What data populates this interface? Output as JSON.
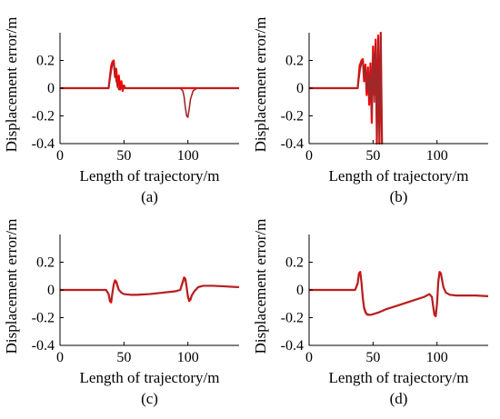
{
  "chart_data": [
    {
      "type": "line",
      "panel_label": "(a)",
      "xlabel": "Length of trajectory/m",
      "ylabel": "Displacement error/m",
      "xlim": [
        0,
        140
      ],
      "ylim": [
        -0.4,
        0.4
      ],
      "xticks": [
        0,
        50,
        100
      ],
      "yticks": [
        0.2,
        0,
        -0.2,
        -0.4
      ],
      "x_tick_labels": [
        "0",
        "50",
        "100"
      ],
      "y_tick_labels": [
        "0.2",
        "0",
        "-0.2",
        "-0.4"
      ],
      "grid": false,
      "series": [
        {
          "color": "#ff0000",
          "x": [
            0,
            38,
            40,
            41,
            42,
            43,
            44,
            45,
            46,
            47,
            48,
            49,
            50,
            51,
            140
          ],
          "y": [
            0,
            0,
            0.16,
            0.19,
            0.2,
            0.08,
            0.14,
            0.01,
            0.09,
            -0.01,
            0.05,
            -0.02,
            0.02,
            0,
            0
          ]
        },
        {
          "color": "#a0282a",
          "x": [
            0,
            38,
            40,
            41,
            42,
            43,
            44,
            45,
            46,
            47,
            48,
            50,
            52,
            94,
            96,
            97,
            98,
            99,
            100,
            101,
            102,
            104,
            107,
            140
          ],
          "y": [
            0,
            0,
            0.12,
            0.17,
            0.18,
            0.12,
            0.05,
            0.02,
            -0.01,
            0,
            0.01,
            0,
            0,
            0,
            -0.02,
            -0.06,
            -0.14,
            -0.2,
            -0.21,
            -0.15,
            -0.08,
            -0.02,
            0,
            0
          ]
        }
      ]
    },
    {
      "type": "line",
      "panel_label": "(b)",
      "xlabel": "Length of trajectory/m",
      "ylabel": "Displacement error/m",
      "xlim": [
        0,
        140
      ],
      "ylim": [
        -0.4,
        0.4
      ],
      "xticks": [
        0,
        50,
        100
      ],
      "yticks": [
        0.2,
        0,
        -0.2,
        -0.4
      ],
      "x_tick_labels": [
        "0",
        "50",
        "100"
      ],
      "y_tick_labels": [
        "0.2",
        "0",
        "-0.2",
        "-0.4"
      ],
      "grid": false,
      "series": [
        {
          "color": "#ff0000",
          "x": [
            0,
            38,
            39.5,
            41,
            42,
            43,
            44,
            45,
            46,
            47,
            48,
            49,
            50,
            51,
            52,
            53,
            54,
            55,
            56,
            57,
            57.5
          ],
          "y": [
            0,
            0,
            0.16,
            0.2,
            0.21,
            0.05,
            0.17,
            -0.05,
            0.15,
            -0.12,
            0.18,
            -0.25,
            0.3,
            -0.05,
            0.35,
            -0.4,
            0.38,
            -0.4,
            0.4,
            -0.4,
            -0.4
          ]
        },
        {
          "color": "#a0282a",
          "x": [
            0,
            38,
            40,
            41,
            42,
            43,
            44,
            45,
            46,
            47,
            48,
            49,
            50,
            51,
            52,
            53,
            54,
            55,
            56,
            57
          ],
          "y": [
            0,
            0,
            0.14,
            0.18,
            0.19,
            0.08,
            0.15,
            -0.02,
            0.12,
            -0.08,
            0.14,
            -0.2,
            0.26,
            -0.1,
            0.32,
            -0.36,
            0.36,
            -0.4,
            0.4,
            -0.4
          ]
        }
      ]
    },
    {
      "type": "line",
      "panel_label": "(c)",
      "xlabel": "Length of trajectory/m",
      "ylabel": "Displacement error/m",
      "xlim": [
        0,
        140
      ],
      "ylim": [
        -0.4,
        0.4
      ],
      "xticks": [
        0,
        50,
        100
      ],
      "yticks": [
        0.2,
        0,
        -0.2,
        -0.4
      ],
      "x_tick_labels": [
        "0",
        "50",
        "100"
      ],
      "y_tick_labels": [
        "0.2",
        "0",
        "-0.2",
        "-0.4"
      ],
      "grid": false,
      "series": [
        {
          "color": "#ff0000",
          "x": [
            0,
            36,
            38,
            39,
            40,
            41,
            42,
            43,
            44,
            45,
            46,
            48,
            50,
            55,
            60,
            70,
            80,
            90,
            94,
            96,
            97,
            98,
            99,
            100,
            101,
            102,
            103,
            105,
            108,
            112,
            120,
            130,
            140
          ],
          "y": [
            0,
            0,
            -0.03,
            -0.08,
            -0.09,
            -0.02,
            0.04,
            0.07,
            0.06,
            0.03,
            0,
            -0.02,
            -0.03,
            -0.035,
            -0.035,
            -0.03,
            -0.02,
            -0.01,
            0,
            0.06,
            0.09,
            0.08,
            0.02,
            -0.05,
            -0.08,
            -0.07,
            -0.04,
            -0.01,
            0.02,
            0.03,
            0.03,
            0.025,
            0.02
          ]
        },
        {
          "color": "#a0282a",
          "x": [
            0,
            36,
            38,
            39,
            40,
            41,
            42,
            43,
            44,
            45,
            46,
            48,
            50,
            55,
            60,
            70,
            80,
            90,
            94,
            96,
            97,
            98,
            99,
            100,
            101,
            102,
            103,
            105,
            108,
            112,
            120,
            130,
            140
          ],
          "y": [
            0,
            0,
            -0.03,
            -0.07,
            -0.08,
            -0.02,
            0.04,
            0.06,
            0.05,
            0.02,
            0,
            -0.02,
            -0.03,
            -0.035,
            -0.035,
            -0.03,
            -0.02,
            -0.01,
            0,
            0.05,
            0.08,
            0.07,
            0.02,
            -0.04,
            -0.07,
            -0.06,
            -0.04,
            -0.01,
            0.02,
            0.03,
            0.03,
            0.025,
            0.02
          ]
        }
      ]
    },
    {
      "type": "line",
      "panel_label": "(d)",
      "xlabel": "Length of trajectory/m",
      "ylabel": "Displacement error/m",
      "xlim": [
        0,
        140
      ],
      "ylim": [
        -0.4,
        0.4
      ],
      "xticks": [
        0,
        50,
        100
      ],
      "yticks": [
        0.2,
        0,
        -0.2,
        -0.4
      ],
      "x_tick_labels": [
        "0",
        "50",
        "100"
      ],
      "y_tick_labels": [
        "0.2",
        "0",
        "-0.2",
        "-0.4"
      ],
      "grid": false,
      "series": [
        {
          "color": "#ff0000",
          "x": [
            0,
            36,
            38,
            39,
            40,
            41,
            42,
            43,
            44,
            45,
            46,
            48,
            50,
            55,
            60,
            70,
            80,
            90,
            94,
            96,
            97,
            98,
            99,
            100,
            101,
            102,
            103,
            104,
            105,
            107,
            110,
            115,
            120,
            130,
            140
          ],
          "y": [
            0,
            0,
            0.05,
            0.12,
            0.13,
            0.05,
            -0.06,
            -0.13,
            -0.16,
            -0.175,
            -0.18,
            -0.18,
            -0.175,
            -0.16,
            -0.14,
            -0.11,
            -0.08,
            -0.05,
            -0.03,
            -0.05,
            -0.12,
            -0.18,
            -0.19,
            -0.1,
            0.06,
            0.13,
            0.12,
            0.07,
            0.02,
            -0.02,
            -0.035,
            -0.04,
            -0.04,
            -0.04,
            -0.045
          ]
        },
        {
          "color": "#a0282a",
          "x": [
            0,
            36,
            38,
            39,
            40,
            41,
            42,
            43,
            44,
            45,
            46,
            48,
            50,
            55,
            60,
            70,
            80,
            90,
            94,
            96,
            97,
            98,
            99,
            100,
            101,
            102,
            103,
            104,
            105,
            107,
            110,
            115,
            120,
            130,
            140
          ],
          "y": [
            0,
            0,
            0.04,
            0.11,
            0.12,
            0.05,
            -0.05,
            -0.12,
            -0.15,
            -0.17,
            -0.175,
            -0.18,
            -0.175,
            -0.16,
            -0.14,
            -0.11,
            -0.08,
            -0.05,
            -0.03,
            -0.05,
            -0.11,
            -0.17,
            -0.18,
            -0.1,
            0.05,
            0.12,
            0.11,
            0.07,
            0.02,
            -0.02,
            -0.035,
            -0.04,
            -0.04,
            -0.04,
            -0.045
          ]
        }
      ]
    }
  ]
}
